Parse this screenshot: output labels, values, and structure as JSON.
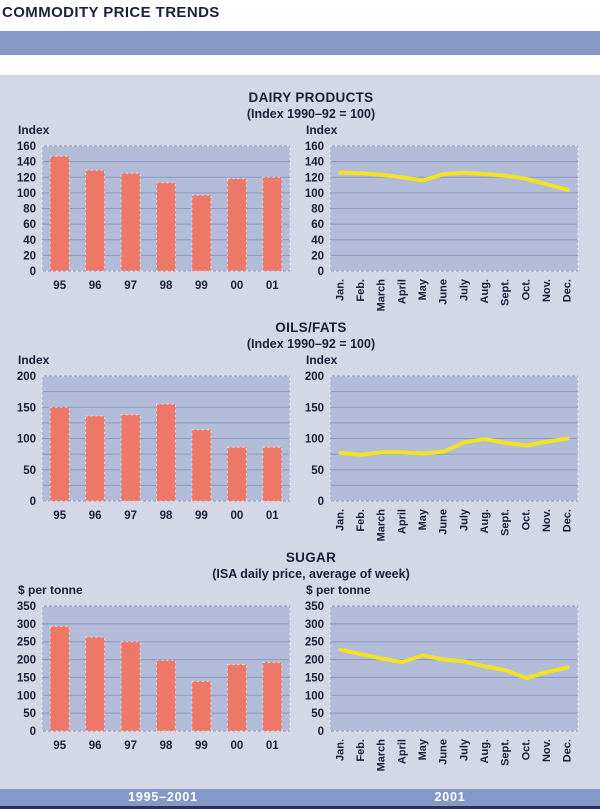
{
  "page": {
    "title": "COMMODITY PRICE TRENDS",
    "footer": {
      "left_range_label": "1995–2001",
      "right_range_label": "2001"
    }
  },
  "colors": {
    "header_band": "#8499C5",
    "panel_bg": "#D3D7E6",
    "plot_bg": "#B2BBD7",
    "gridline": "#8C99C4",
    "bar_fill": "#EE7868",
    "bar_edge": "rgba(255,255,255,0.65)",
    "line_stroke": "#F3E224",
    "text": "#1A1E38",
    "footer_text": "#FFFFFF",
    "bottom_strip": "#2A3162"
  },
  "chart_data": [
    {
      "id": "dairy-products",
      "title": "DAIRY PRODUCTS",
      "subtitle": "(Index 1990–92 = 100)",
      "axis_label": "Index",
      "ylim": [
        0,
        160
      ],
      "label_step": 20,
      "grid_step": 20,
      "yticks": [
        "0",
        "20",
        "40",
        "60",
        "80",
        "100",
        "120",
        "140",
        "160"
      ],
      "grid": "on",
      "legend": "none",
      "bar": {
        "type": "bar",
        "period_label": "1995–2001",
        "categories": [
          "95",
          "96",
          "97",
          "98",
          "99",
          "00",
          "01"
        ],
        "values": [
          147,
          129,
          125,
          113,
          97,
          118,
          120
        ]
      },
      "line": {
        "type": "line",
        "period_label": "2001",
        "categories": [
          "Jan.",
          "Feb.",
          "March",
          "April",
          "May",
          "June",
          "July",
          "Aug.",
          "Sept.",
          "Oct.",
          "Nov.",
          "Dec."
        ],
        "values": [
          126,
          125,
          123,
          120,
          116,
          124,
          126,
          124,
          122,
          118,
          111,
          104
        ]
      }
    },
    {
      "id": "oils-fats",
      "title": "OILS/FATS",
      "subtitle": "(Index 1990–92 = 100)",
      "axis_label": "Index",
      "ylim": [
        0,
        200
      ],
      "label_step": 50,
      "grid_step": 25,
      "yticks": [
        "0",
        "50",
        "100",
        "150",
        "200"
      ],
      "grid": "on",
      "legend": "none",
      "bar": {
        "type": "bar",
        "period_label": "1995–2001",
        "categories": [
          "95",
          "96",
          "97",
          "98",
          "99",
          "00",
          "01"
        ],
        "values": [
          150,
          136,
          138,
          155,
          114,
          86,
          86
        ]
      },
      "line": {
        "type": "line",
        "period_label": "2001",
        "categories": [
          "Jan.",
          "Feb.",
          "March",
          "April",
          "May",
          "June",
          "July",
          "Aug.",
          "Sept.",
          "Oct.",
          "Nov.",
          "Dec."
        ],
        "values": [
          77,
          74,
          78,
          78,
          76,
          79,
          94,
          99,
          93,
          89,
          95,
          100
        ]
      }
    },
    {
      "id": "sugar",
      "title": "SUGAR",
      "subtitle": "(ISA daily price, average of week)",
      "axis_label": "$ per tonne",
      "ylim": [
        0,
        350
      ],
      "label_step": 50,
      "grid_step": 50,
      "yticks": [
        "0",
        "50",
        "100",
        "150",
        "200",
        "250",
        "300",
        "350"
      ],
      "grid": "on",
      "legend": "none",
      "bar": {
        "type": "bar",
        "period_label": "1995–2001",
        "categories": [
          "95",
          "96",
          "97",
          "98",
          "99",
          "00",
          "01"
        ],
        "values": [
          293,
          263,
          250,
          198,
          139,
          186,
          192
        ]
      },
      "line": {
        "type": "line",
        "period_label": "2001",
        "categories": [
          "Jan.",
          "Feb.",
          "March",
          "April",
          "May",
          "June",
          "July",
          "Aug.",
          "Sept.",
          "Oct.",
          "Nov.",
          "Dec."
        ],
        "values": [
          228,
          215,
          203,
          193,
          212,
          200,
          195,
          181,
          170,
          148,
          165,
          178
        ]
      }
    }
  ]
}
